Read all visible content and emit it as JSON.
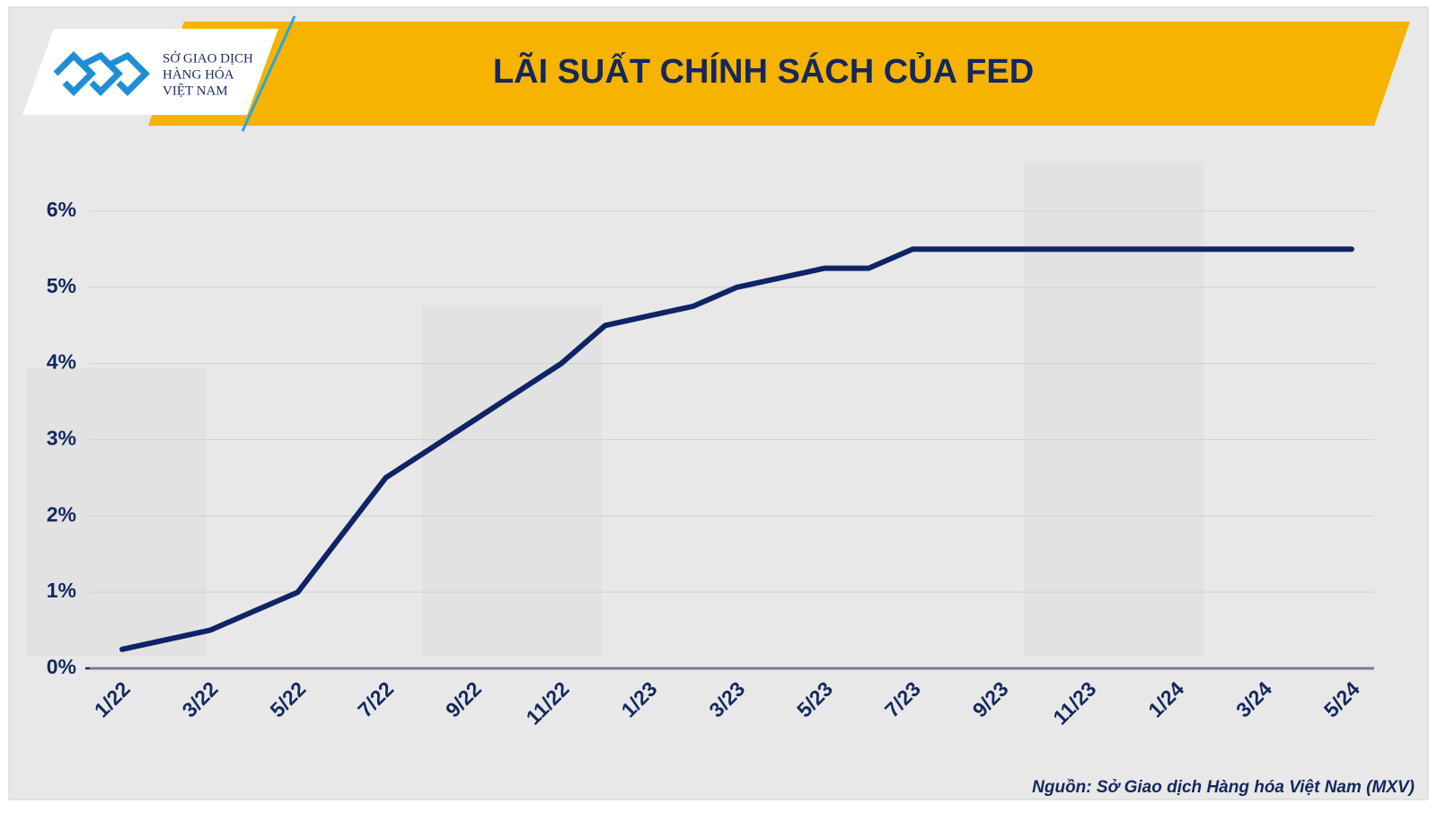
{
  "chart_data": {
    "type": "line",
    "title": "LÃI SUẤT CHÍNH SÁCH CỦA FED",
    "logo_text": [
      "SỞ GIAO DỊCH",
      "HÀNG HÓA",
      "VIỆT NAM"
    ],
    "source": "Nguồn: Sở Giao dịch Hàng hóa Việt Nam (MXV)",
    "categories": [
      "1/22",
      null,
      "3/22",
      null,
      "5/22",
      null,
      "7/22",
      null,
      "9/22",
      null,
      "11/22",
      null,
      "1/23",
      null,
      "3/23",
      null,
      "5/23",
      null,
      "7/23",
      null,
      "9/23",
      null,
      "11/23",
      null,
      "1/24",
      null,
      "3/24",
      null,
      "5/24"
    ],
    "values": [
      0.25,
      0.375,
      0.5,
      0.75,
      1.0,
      1.75,
      2.5,
      2.875,
      3.25,
      3.625,
      4.0,
      4.5,
      4.625,
      4.75,
      5.0,
      5.125,
      5.25,
      5.25,
      5.5,
      5.5,
      5.5,
      5.5,
      5.5,
      5.5,
      5.5,
      5.5,
      5.5,
      5.5,
      5.5
    ],
    "color": "#0f2466",
    "ylim": [
      0,
      6
    ],
    "yticks": [
      {
        "value": 0,
        "label": "0%"
      },
      {
        "value": 1,
        "label": "1%"
      },
      {
        "value": 2,
        "label": "2%"
      },
      {
        "value": 3,
        "label": "3%"
      },
      {
        "value": 4,
        "label": "4%"
      },
      {
        "value": 5,
        "label": "5%"
      },
      {
        "value": 6,
        "label": "6%"
      }
    ],
    "grid": true
  }
}
